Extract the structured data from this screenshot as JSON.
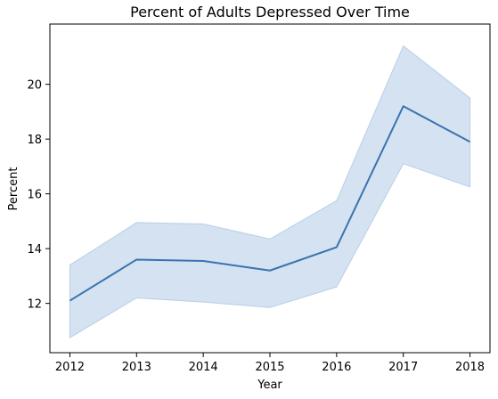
{
  "chart_data": {
    "type": "line",
    "title": "Percent of Adults Depressed Over Time",
    "xlabel": "Year",
    "ylabel": "Percent",
    "categories": [
      "2012",
      "2013",
      "2014",
      "2015",
      "2016",
      "2017",
      "2018"
    ],
    "series": [
      {
        "values": [
          12.1,
          13.6,
          13.55,
          13.2,
          14.05,
          19.2,
          17.9
        ],
        "lower": [
          10.75,
          12.2,
          12.05,
          11.85,
          12.6,
          17.1,
          16.25
        ],
        "upper": [
          13.4,
          14.95,
          14.9,
          14.35,
          15.75,
          21.4,
          19.5
        ],
        "color": "#3a73b0",
        "band_color": "#b8cfe7"
      }
    ],
    "ylim": [
      10.2,
      22.2
    ],
    "yticks": [
      "12",
      "14",
      "16",
      "18",
      "20"
    ],
    "xlim": [
      2011.7,
      2018.3
    ],
    "grid": false
  }
}
